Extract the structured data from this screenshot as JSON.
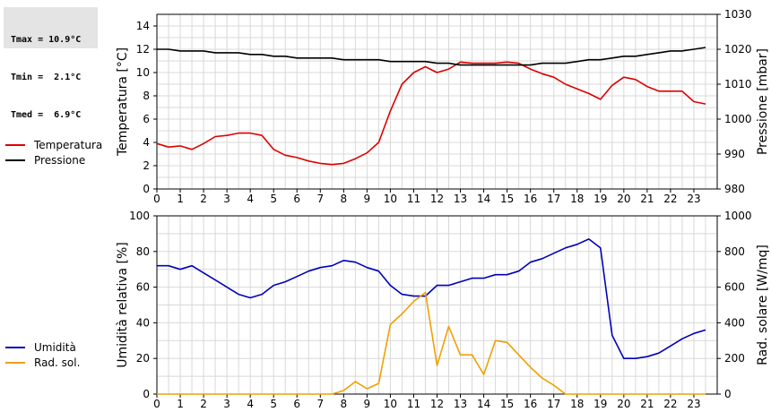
{
  "stats": {
    "tmax": "Tmax = 10.9°C",
    "tmin": "Tmin =  2.1°C",
    "tmed": "Tmed =  6.9°C"
  },
  "colors": {
    "temperature": "#dd0000",
    "pressure": "#000000",
    "humidity": "#0000bb",
    "radiation": "#f0a000",
    "grid": "#d8d8d8"
  },
  "legend_top": [
    {
      "label": "Temperatura",
      "color": "#dd0000"
    },
    {
      "label": "Pressione",
      "color": "#000000"
    }
  ],
  "legend_bottom": [
    {
      "label": "Umidità",
      "color": "#0000bb"
    },
    {
      "label": "Rad. sol.",
      "color": "#f0a000"
    }
  ],
  "chart_data": [
    {
      "type": "line",
      "xlabel": "",
      "x_ticks": [
        "0",
        "1",
        "2",
        "3",
        "4",
        "5",
        "6",
        "7",
        "8",
        "9",
        "10",
        "11",
        "12",
        "13",
        "14",
        "15",
        "16",
        "17",
        "18",
        "19",
        "20",
        "21",
        "22",
        "23"
      ],
      "xlim": [
        0,
        24
      ],
      "ylabel_left": "Temperatura [°C]",
      "ylim_left": [
        0,
        15
      ],
      "yticks_left": [
        "0",
        "2",
        "4",
        "6",
        "8",
        "10",
        "12",
        "14"
      ],
      "ylabel_right": "Pressione [mbar]",
      "ylim_right": [
        980,
        1030
      ],
      "yticks_right": [
        "980",
        "990",
        "1000",
        "1010",
        "1020",
        "1030"
      ],
      "grid": true,
      "series": [
        {
          "name": "Temperatura",
          "axis": "left",
          "x": [
            0,
            0.5,
            1,
            1.5,
            2,
            2.5,
            3,
            3.5,
            4,
            4.5,
            5,
            5.5,
            6,
            6.5,
            7,
            7.5,
            8,
            8.5,
            9,
            9.5,
            10,
            10.5,
            11,
            11.5,
            12,
            12.5,
            13,
            13.5,
            14,
            14.5,
            15,
            15.5,
            16,
            16.5,
            17,
            17.5,
            18,
            18.5,
            19,
            19.5,
            20,
            20.5,
            21,
            21.5,
            22,
            22.5,
            23,
            23.5
          ],
          "values": [
            3.9,
            3.6,
            3.7,
            3.4,
            3.9,
            4.5,
            4.6,
            4.8,
            4.8,
            4.6,
            3.4,
            2.9,
            2.7,
            2.4,
            2.2,
            2.1,
            2.2,
            2.6,
            3.1,
            4.0,
            6.7,
            9.0,
            10.0,
            10.5,
            10.0,
            10.3,
            10.9,
            10.8,
            10.8,
            10.8,
            10.9,
            10.8,
            10.3,
            9.9,
            9.6,
            9.0,
            8.6,
            8.2,
            7.7,
            8.9,
            9.6,
            9.4,
            8.8,
            8.4,
            8.4,
            8.4,
            7.5,
            7.3
          ]
        },
        {
          "name": "Pressione",
          "axis": "right",
          "x": [
            0,
            0.5,
            1,
            1.5,
            2,
            2.5,
            3,
            3.5,
            4,
            4.5,
            5,
            5.5,
            6,
            6.5,
            7,
            7.5,
            8,
            8.5,
            9,
            9.5,
            10,
            10.5,
            11,
            11.5,
            12,
            12.5,
            13,
            13.5,
            14,
            14.5,
            15,
            15.5,
            16,
            16.5,
            17,
            17.5,
            18,
            18.5,
            19,
            19.5,
            20,
            20.5,
            21,
            21.5,
            22,
            22.5,
            23,
            23.5
          ],
          "values": [
            1020,
            1020,
            1019.5,
            1019.5,
            1019.5,
            1019,
            1019,
            1019,
            1018.5,
            1018.5,
            1018,
            1018,
            1017.5,
            1017.5,
            1017.5,
            1017.5,
            1017,
            1017,
            1017,
            1017,
            1016.5,
            1016.5,
            1016.5,
            1016.5,
            1016,
            1016,
            1015.5,
            1015.5,
            1015.5,
            1015.5,
            1015.5,
            1015.5,
            1015.5,
            1016,
            1016,
            1016,
            1016.5,
            1017,
            1017,
            1017.5,
            1018,
            1018,
            1018.5,
            1019,
            1019.5,
            1019.5,
            1020,
            1020.5
          ]
        }
      ]
    },
    {
      "type": "line",
      "xlabel": "",
      "x_ticks": [
        "0",
        "1",
        "2",
        "3",
        "4",
        "5",
        "6",
        "7",
        "8",
        "9",
        "10",
        "11",
        "12",
        "13",
        "14",
        "15",
        "16",
        "17",
        "18",
        "19",
        "20",
        "21",
        "22",
        "23"
      ],
      "xlim": [
        0,
        24
      ],
      "ylabel_left": "Umidità relativa [%]",
      "ylim_left": [
        0,
        100
      ],
      "yticks_left": [
        "0",
        "20",
        "40",
        "60",
        "80",
        "100"
      ],
      "ylabel_right": "Rad. solare [W/mq]",
      "ylim_right": [
        0,
        1000
      ],
      "yticks_right": [
        "0",
        "200",
        "400",
        "600",
        "800",
        "1000"
      ],
      "grid": true,
      "series": [
        {
          "name": "Umidità",
          "axis": "left",
          "x": [
            0,
            0.5,
            1,
            1.5,
            2,
            2.5,
            3,
            3.5,
            4,
            4.5,
            5,
            5.5,
            6,
            6.5,
            7,
            7.5,
            8,
            8.5,
            9,
            9.5,
            10,
            10.5,
            11,
            11.5,
            12,
            12.5,
            13,
            13.5,
            14,
            14.5,
            15,
            15.5,
            16,
            16.5,
            17,
            17.5,
            18,
            18.5,
            19,
            19.5,
            20,
            20.5,
            21,
            21.5,
            22,
            22.5,
            23,
            23.5
          ],
          "values": [
            72,
            72,
            70,
            72,
            68,
            64,
            60,
            56,
            54,
            56,
            61,
            63,
            66,
            69,
            71,
            72,
            75,
            74,
            71,
            69,
            61,
            56,
            55,
            55,
            61,
            61,
            63,
            65,
            65,
            67,
            67,
            69,
            74,
            76,
            79,
            82,
            84,
            87,
            82,
            33,
            20,
            20,
            21,
            23,
            27,
            31,
            34,
            36
          ]
        },
        {
          "name": "Rad. sol.",
          "axis": "right",
          "x": [
            0,
            0.5,
            1,
            1.5,
            2,
            2.5,
            3,
            3.5,
            4,
            4.5,
            5,
            5.5,
            6,
            6.5,
            7,
            7.5,
            8,
            8.5,
            9,
            9.5,
            10,
            10.5,
            11,
            11.5,
            12,
            12.5,
            13,
            13.5,
            14,
            14.5,
            15,
            15.5,
            16,
            16.5,
            17,
            17.5,
            18,
            18.5,
            19,
            19.5,
            20,
            20.5,
            21,
            21.5,
            22,
            22.5,
            23,
            23.5
          ],
          "values": [
            0,
            0,
            0,
            0,
            0,
            0,
            0,
            0,
            0,
            0,
            0,
            0,
            0,
            0,
            0,
            0,
            20,
            70,
            30,
            60,
            390,
            450,
            520,
            570,
            160,
            380,
            220,
            220,
            110,
            300,
            290,
            220,
            150,
            90,
            50,
            0,
            0,
            0,
            0,
            0,
            0,
            0,
            0,
            0,
            0,
            0,
            0,
            0
          ]
        }
      ]
    }
  ]
}
